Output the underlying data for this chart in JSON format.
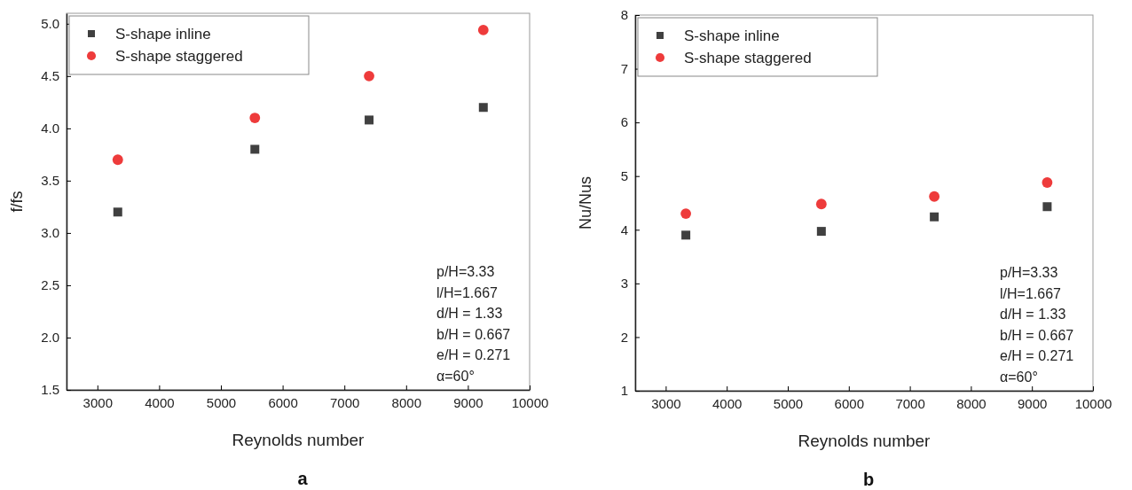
{
  "chart_data": [
    {
      "type": "scatter",
      "xlabel": "Reynolds number",
      "ylabel": "f/fs",
      "x": [
        3330,
        5550,
        7400,
        9250
      ],
      "series": [
        {
          "name": "S-shape inline",
          "color": "#404040",
          "marker": "square",
          "values": [
            3.2,
            3.8,
            4.08,
            4.2
          ]
        },
        {
          "name": "S-shape staggered",
          "color": "#ee3b3b",
          "marker": "circle",
          "values": [
            3.7,
            4.1,
            4.5,
            4.94
          ]
        }
      ],
      "xlim": [
        2500,
        10000
      ],
      "xticks": [
        3000,
        4000,
        5000,
        6000,
        7000,
        8000,
        9000,
        10000
      ],
      "ylim": [
        1.5,
        5.1
      ],
      "yticks": [
        {
          "value": 1.5,
          "label": "1.5"
        },
        {
          "value": 2,
          "label": "2.0"
        },
        {
          "value": 2.5,
          "label": "2.5"
        },
        {
          "value": 3,
          "label": "3.0"
        },
        {
          "value": 3.5,
          "label": "3.5"
        },
        {
          "value": 4,
          "label": "4.0"
        },
        {
          "value": 4.5,
          "label": "4.5"
        },
        {
          "value": 5,
          "label": "5.0"
        }
      ],
      "legend": "top left",
      "grid": false,
      "annotations": [
        "p/H=3.33",
        "l/H=1.667",
        "d/H = 1.33",
        "b/H = 0.667",
        "e/H = 0.271",
        "α=60°",
        "a"
      ]
    },
    {
      "type": "scatter",
      "xlabel": "Reynolds number",
      "ylabel": "Nu/Nus",
      "x": [
        3330,
        5550,
        7400,
        9250
      ],
      "series": [
        {
          "name": "S-shape inline",
          "color": "#404040",
          "marker": "square",
          "values": [
            3.9,
            3.97,
            4.24,
            4.43
          ]
        },
        {
          "name": "S-shape staggered",
          "color": "#ee3b3b",
          "marker": "circle",
          "values": [
            4.3,
            4.48,
            4.62,
            4.88
          ]
        }
      ],
      "xlim": [
        2500,
        10000
      ],
      "xticks": [
        3000,
        4000,
        5000,
        6000,
        7000,
        8000,
        9000,
        10000
      ],
      "ylim": [
        1,
        8
      ],
      "yticks": [
        1,
        2,
        3,
        4,
        5,
        6,
        7,
        8
      ],
      "legend": "top left",
      "grid": false,
      "annotations": [
        "p/H=3.33",
        "l/H=1.667",
        "d/H = 1.33",
        "b/H = 0.667",
        "e/H = 0.271",
        "α=60°",
        "b"
      ]
    }
  ]
}
